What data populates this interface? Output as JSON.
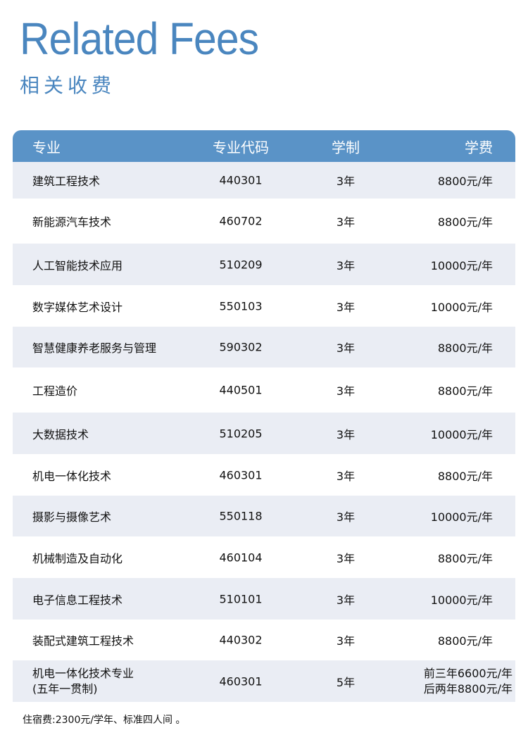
{
  "title": "Related Fees",
  "subtitle": "相关收费",
  "table": {
    "headers": [
      "专业",
      "专业代码",
      "学制",
      "学费"
    ],
    "rows": [
      {
        "major": "建筑工程技术",
        "code": "440301",
        "years": "3年",
        "fee": "8800元/年"
      },
      {
        "major": "新能源汽车技术",
        "code": "460702",
        "years": "3年",
        "fee": "8800元/年"
      },
      {
        "major": "人工智能技术应用",
        "code": "510209",
        "years": "3年",
        "fee": "10000元/年"
      },
      {
        "major": "数字媒体艺术设计",
        "code": "550103",
        "years": "3年",
        "fee": "10000元/年"
      },
      {
        "major": "智慧健康养老服务与管理",
        "code": "590302",
        "years": "3年",
        "fee": "8800元/年"
      },
      {
        "major": "工程造价",
        "code": "440501",
        "years": "3年",
        "fee": "8800元/年"
      },
      {
        "major": "大数据技术",
        "code": "510205",
        "years": "3年",
        "fee": "10000元/年"
      },
      {
        "major": "机电一体化技术",
        "code": "460301",
        "years": "3年",
        "fee": "8800元/年"
      },
      {
        "major": "摄影与摄像艺术",
        "code": "550118",
        "years": "3年",
        "fee": "10000元/年"
      },
      {
        "major": "机械制造及自动化",
        "code": "460104",
        "years": "3年",
        "fee": "8800元/年"
      },
      {
        "major": "电子信息工程技术",
        "code": "510101",
        "years": "3年",
        "fee": "10000元/年"
      },
      {
        "major": "装配式建筑工程技术",
        "code": "440302",
        "years": "3年",
        "fee": "8800元/年"
      }
    ],
    "last_row": {
      "major_line1": "机电一体化技术专业",
      "major_line2": "(五年一贯制)",
      "code": "460301",
      "years": "5年",
      "fee_line1": "前三年6600元/年",
      "fee_line2": "后两年8800元/年"
    }
  },
  "note": "住宿费:2300元/学年、标准四人间 。",
  "colors": {
    "accent": "#4a86bf",
    "header_bg": "#5a93c7",
    "row_shade": "#eaedf4"
  }
}
